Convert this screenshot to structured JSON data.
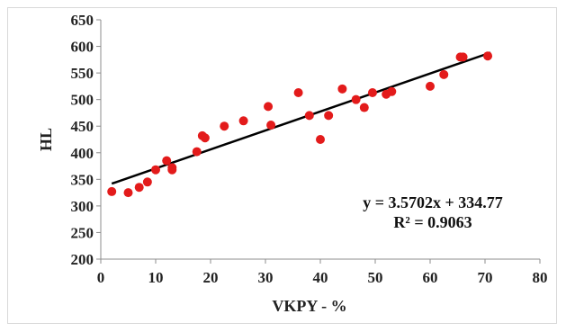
{
  "chart_data": {
    "type": "scatter",
    "xlabel": "VKPY  - %",
    "ylabel": "HL",
    "xlim": [
      0,
      80
    ],
    "ylim": [
      200,
      650
    ],
    "xticks": [
      0,
      10,
      20,
      30,
      40,
      50,
      60,
      70,
      80
    ],
    "yticks": [
      200,
      250,
      300,
      350,
      400,
      450,
      500,
      550,
      600,
      650
    ],
    "grid": false,
    "colors": {
      "points": "#e31b1b",
      "trendline": "#000000"
    },
    "series": [
      {
        "x": [
          2,
          5,
          7,
          8.5,
          10,
          12,
          13,
          13,
          17.5,
          18.5,
          19,
          22.5,
          26,
          30.5,
          31,
          36,
          38,
          40,
          41.5,
          44,
          46.5,
          48,
          49.5,
          52,
          53,
          60,
          62.5,
          65.5,
          66,
          70.5
        ],
        "y": [
          327,
          325,
          335,
          345,
          368,
          385,
          372,
          368,
          402,
          432,
          428,
          450,
          460,
          487,
          452,
          513,
          470,
          425,
          470,
          520,
          500,
          485,
          513,
          510,
          515,
          525,
          547,
          580,
          580,
          582
        ]
      }
    ],
    "trendline": {
      "slope": 3.5702,
      "intercept": 334.77,
      "x_range": [
        2,
        71
      ],
      "equation": "y = 3.5702x + 334.77",
      "r2": "R² = 0.9063"
    }
  }
}
